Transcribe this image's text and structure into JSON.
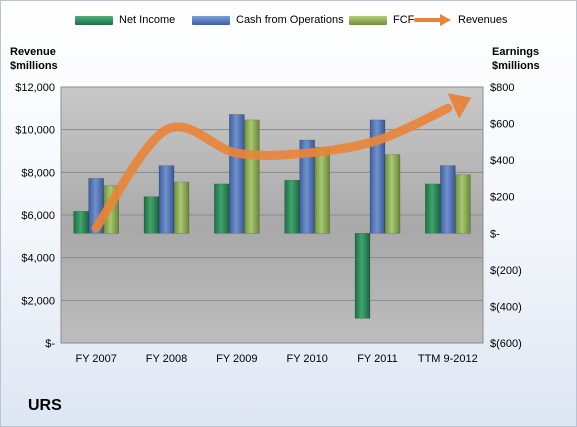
{
  "chart_data": {
    "type": "bar",
    "title": "URS",
    "categories": [
      "FY 2007",
      "FY 2008",
      "FY 2009",
      "FY 2010",
      "FY 2011",
      "TTM 9-2012"
    ],
    "left_axis": {
      "label": "Revenue\n$millions",
      "ylim": [
        0,
        12000
      ],
      "ticks": [
        0,
        2000,
        4000,
        6000,
        8000,
        10000,
        12000
      ],
      "tick_labels": [
        "$-",
        "$2,000",
        "$4,000",
        "$6,000",
        "$8,000",
        "$10,000",
        "$12,000"
      ]
    },
    "right_axis": {
      "label": "Earnings\n$millions",
      "ylim": [
        -600,
        800
      ],
      "ticks": [
        -600,
        -400,
        -200,
        0,
        200,
        400,
        600,
        800
      ],
      "tick_labels": [
        "$(600)",
        "$(400)",
        "$(200)",
        "$-",
        "$200",
        "$400",
        "$600",
        "$800"
      ]
    },
    "series": [
      {
        "name": "Net Income",
        "type": "bar",
        "axis": "right",
        "color": "#2e8b57",
        "values": [
          120,
          200,
          270,
          290,
          -465,
          270
        ]
      },
      {
        "name": "Cash from Operations",
        "type": "bar",
        "axis": "right",
        "color": "#5b7fbf",
        "values": [
          300,
          370,
          650,
          510,
          620,
          370
        ]
      },
      {
        "name": "FCF",
        "type": "bar",
        "axis": "right",
        "color": "#93b35a",
        "values": [
          260,
          280,
          620,
          470,
          430,
          320
        ]
      },
      {
        "name": "Revenues",
        "type": "line",
        "axis": "left",
        "color": "#e8843a",
        "values": [
          5400,
          10000,
          8900,
          8900,
          9500,
          11000
        ]
      }
    ],
    "grid": true,
    "legend_position": "top"
  }
}
